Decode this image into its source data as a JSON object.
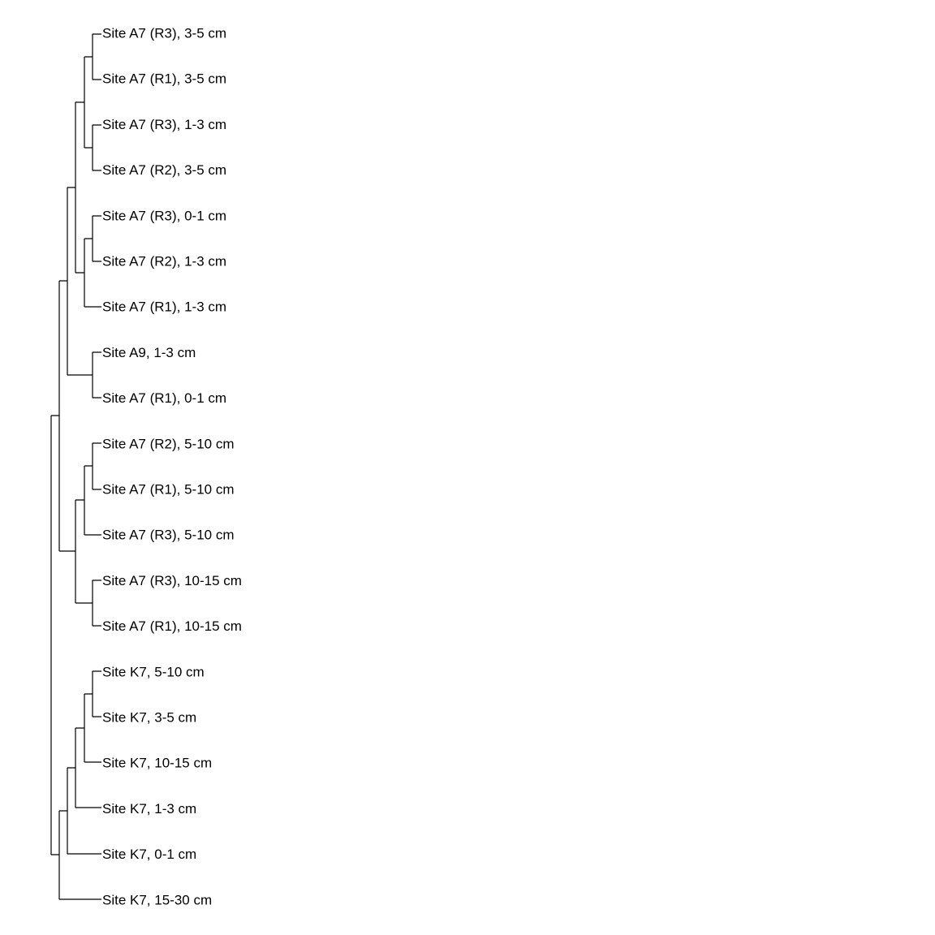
{
  "leaves": [
    "Site A7 (R3), 3-5 cm",
    "Site A7 (R1), 3-5 cm",
    "Site A7 (R3), 1-3 cm",
    "Site A7 (R2), 3-5 cm",
    "Site A7 (R3), 0-1 cm",
    "Site A7 (R2), 1-3 cm",
    "Site A7 (R1), 1-3 cm",
    "Site A9, 1-3 cm",
    "Site A7 (R1), 0-1 cm",
    "Site A7 (R2), 5-10 cm",
    "Site A7 (R1), 5-10 cm",
    "Site A7 (R3), 5-10 cm",
    "Site A7 (R3), 10-15 cm",
    "Site A7 (R1), 10-15 cm",
    "Site K7, 5-10 cm",
    "Site K7, 3-5 cm",
    "Site K7, 10-15 cm",
    "Site K7, 1-3 cm",
    "Site K7, 0-1 cm",
    "Site K7, 15-30 cm"
  ]
}
